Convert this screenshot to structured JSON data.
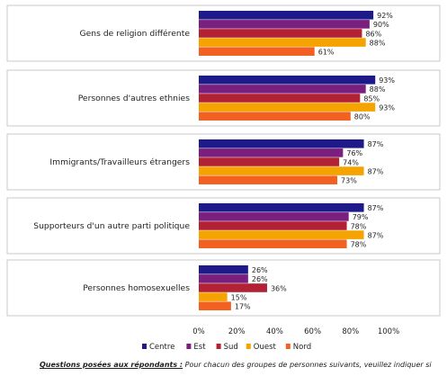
{
  "chart_data": {
    "type": "bar",
    "orientation": "horizontal",
    "categories": [
      "Gens de religion différente",
      "Personnes d'autres ethnies",
      "Immigrants/Travailleurs étrangers",
      "Supporteurs d'un autre parti politique",
      "Personnes homosexuelles"
    ],
    "series": [
      {
        "name": "Centre",
        "color": "#1f1a8a",
        "values": [
          92,
          93,
          87,
          87,
          26
        ],
        "labels": [
          "92%",
          "93%",
          "87%",
          "87%",
          "26%"
        ]
      },
      {
        "name": "Est",
        "color": "#7a1f7d",
        "values": [
          90,
          88,
          76,
          79,
          26
        ],
        "labels": [
          "90%",
          "88%",
          "76%",
          "79%",
          "26%"
        ]
      },
      {
        "name": "Sud",
        "color": "#b22234",
        "values": [
          86,
          85,
          74,
          78,
          36
        ],
        "labels": [
          "86%",
          "85%",
          "74%",
          "78%",
          "36%"
        ]
      },
      {
        "name": "Ouest",
        "color": "#f5a300",
        "values": [
          88,
          93,
          87,
          87,
          15
        ],
        "labels": [
          "88%",
          "93%",
          "87%",
          "87%",
          "15%"
        ]
      },
      {
        "name": "Nord",
        "color": "#f26122",
        "values": [
          61,
          80,
          73,
          78,
          17
        ],
        "labels": [
          "61%",
          "80%",
          "73%",
          "78%",
          "17%"
        ]
      }
    ],
    "xlim": [
      0,
      100
    ],
    "xticks": [
      "0%",
      "20%",
      "40%",
      "60%",
      "80%",
      "100%"
    ],
    "legend_position": "bottom",
    "grid": false
  },
  "footer": {
    "question_label": "Questions posées aux répondants :",
    "text": " Pour chacun des groupes de personnes suivants, veuillez indiquer si"
  }
}
